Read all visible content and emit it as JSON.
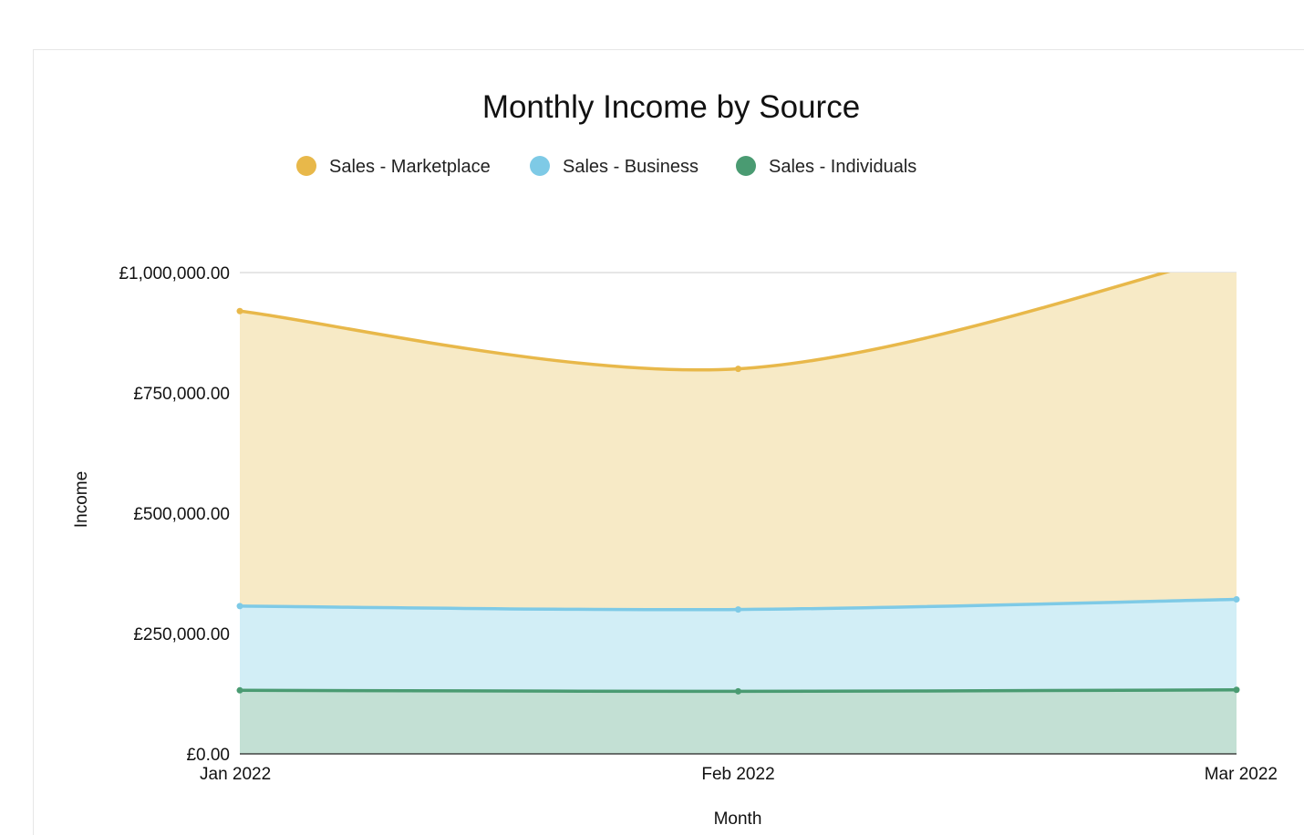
{
  "chart_data": {
    "type": "area",
    "stacked": true,
    "title": "Monthly Income by Source",
    "xlabel": "Month",
    "ylabel": "Income",
    "categories": [
      "Jan 2022",
      "Feb 2022",
      "Mar 2022"
    ],
    "ylim": [
      0,
      1000000
    ],
    "yticks": [
      0,
      250000,
      500000,
      750000,
      1000000
    ],
    "ytick_labels": [
      "£0.00",
      "£250,000.00",
      "£500,000.00",
      "£750,000.00",
      "£1,000,000.00"
    ],
    "grid": true,
    "legend_position": "top",
    "series": [
      {
        "name": "Sales - Individuals",
        "values": [
          132000,
          130000,
          133000
        ],
        "color": "#4a9b72",
        "fill": "#c3e0d4"
      },
      {
        "name": "Sales - Business",
        "values": [
          175000,
          170000,
          188000
        ],
        "color": "#7ecae6",
        "fill": "#d2eef6"
      },
      {
        "name": "Sales - Marketplace",
        "values": [
          613000,
          500000,
          720000
        ],
        "color": "#e8b84a",
        "fill": "#f7eac6"
      }
    ],
    "legend_order": [
      "Sales - Marketplace",
      "Sales - Business",
      "Sales - Individuals"
    ]
  }
}
